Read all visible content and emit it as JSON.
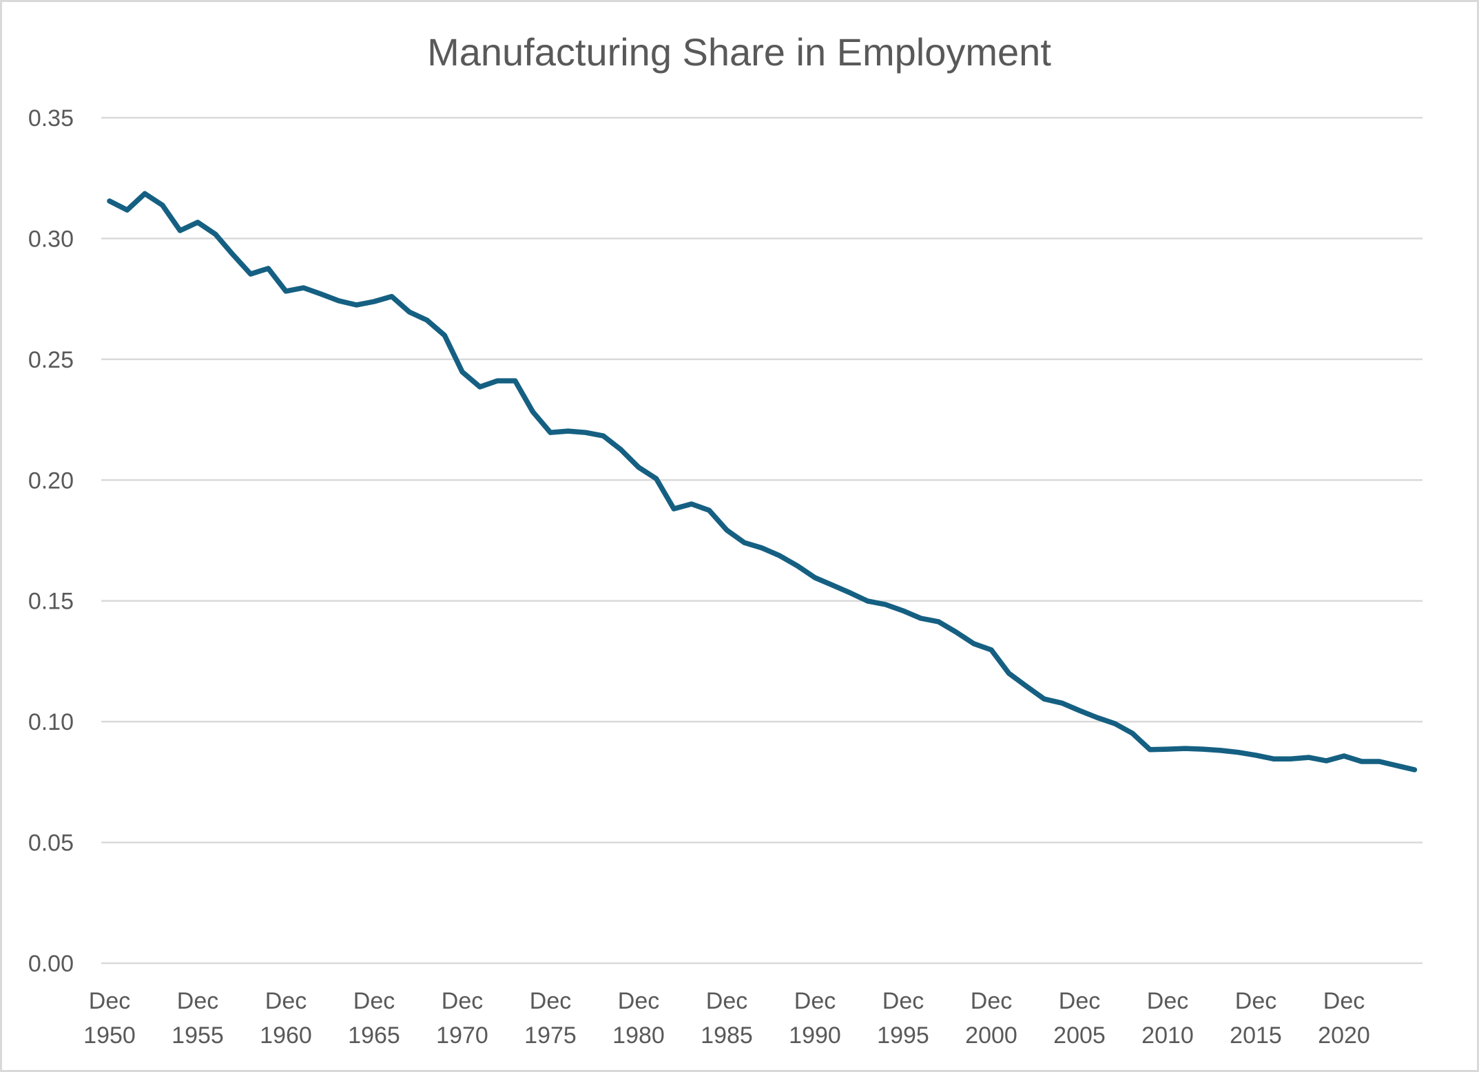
{
  "chart_data": {
    "type": "line",
    "title": "Manufacturing Share in Employment",
    "xlabel": "",
    "ylabel": "",
    "ylim": [
      0,
      0.35
    ],
    "y_ticks": [
      0.0,
      0.05,
      0.1,
      0.15,
      0.2,
      0.25,
      0.3,
      0.35
    ],
    "y_tick_labels": [
      "0.00",
      "0.05",
      "0.10",
      "0.15",
      "0.20",
      "0.25",
      "0.30",
      "0.35"
    ],
    "x_tick_labels": [
      {
        "year": 1950,
        "line1": "Dec",
        "line2": "1950"
      },
      {
        "year": 1955,
        "line1": "Dec",
        "line2": "1955"
      },
      {
        "year": 1960,
        "line1": "Dec",
        "line2": "1960"
      },
      {
        "year": 1965,
        "line1": "Dec",
        "line2": "1965"
      },
      {
        "year": 1970,
        "line1": "Dec",
        "line2": "1970"
      },
      {
        "year": 1975,
        "line1": "Dec",
        "line2": "1975"
      },
      {
        "year": 1980,
        "line1": "Dec",
        "line2": "1980"
      },
      {
        "year": 1985,
        "line1": "Dec",
        "line2": "1985"
      },
      {
        "year": 1990,
        "line1": "Dec",
        "line2": "1990"
      },
      {
        "year": 1995,
        "line1": "Dec",
        "line2": "1995"
      },
      {
        "year": 2000,
        "line1": "Dec",
        "line2": "2000"
      },
      {
        "year": 2005,
        "line1": "Dec",
        "line2": "2005"
      },
      {
        "year": 2010,
        "line1": "Dec",
        "line2": "2010"
      },
      {
        "year": 2015,
        "line1": "Dec",
        "line2": "2015"
      },
      {
        "year": 2020,
        "line1": "Dec",
        "line2": "2020"
      }
    ],
    "grid": true,
    "legend": "none",
    "series": [
      {
        "name": "Manufacturing Share in Employment",
        "color": "#156082",
        "x": [
          1950,
          1951,
          1952,
          1953,
          1954,
          1955,
          1956,
          1957,
          1958,
          1959,
          1960,
          1961,
          1962,
          1963,
          1964,
          1965,
          1966,
          1967,
          1968,
          1969,
          1970,
          1971,
          1972,
          1973,
          1974,
          1975,
          1976,
          1977,
          1978,
          1979,
          1980,
          1981,
          1982,
          1983,
          1984,
          1985,
          1986,
          1987,
          1988,
          1989,
          1990,
          1991,
          1992,
          1993,
          1994,
          1995,
          1996,
          1997,
          1998,
          1999,
          2000,
          2001,
          2002,
          2003,
          2004,
          2005,
          2006,
          2007,
          2008,
          2009,
          2010,
          2011,
          2012,
          2013,
          2014,
          2015,
          2016,
          2017,
          2018,
          2019,
          2020,
          2021,
          2022,
          2023,
          2024
        ],
        "values": [
          0.3155,
          0.3118,
          0.3186,
          0.3138,
          0.3033,
          0.3067,
          0.3018,
          0.2933,
          0.2853,
          0.2876,
          0.2782,
          0.2796,
          0.277,
          0.2742,
          0.2725,
          0.2739,
          0.276,
          0.2696,
          0.2662,
          0.2599,
          0.2448,
          0.2386,
          0.2411,
          0.2411,
          0.2283,
          0.2197,
          0.2203,
          0.2197,
          0.2183,
          0.2126,
          0.2053,
          0.2006,
          0.1881,
          0.1901,
          0.1875,
          0.1793,
          0.1741,
          0.1719,
          0.1687,
          0.1645,
          0.1596,
          0.1565,
          0.1533,
          0.1499,
          0.1485,
          0.1459,
          0.1428,
          0.1414,
          0.1371,
          0.1323,
          0.1297,
          0.12,
          0.1146,
          0.1094,
          0.1077,
          0.1046,
          0.1017,
          0.0992,
          0.0952,
          0.0884,
          0.0886,
          0.0889,
          0.0886,
          0.0881,
          0.0873,
          0.0861,
          0.0846,
          0.0846,
          0.0852,
          0.0838,
          0.0858,
          0.0835,
          0.0835,
          0.0818,
          0.0801
        ]
      }
    ]
  }
}
